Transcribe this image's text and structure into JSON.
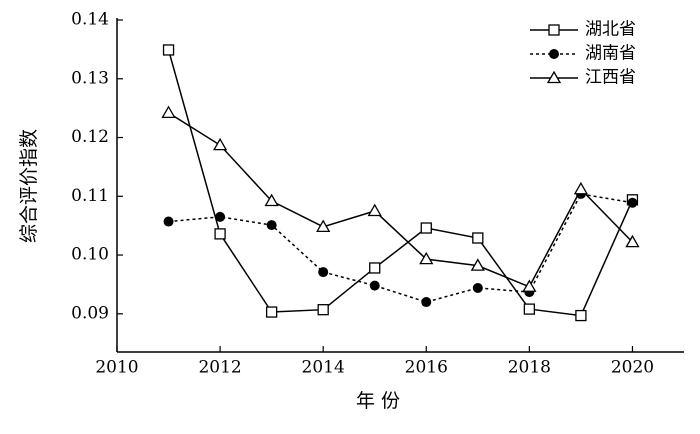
{
  "chart_data": {
    "type": "line",
    "x_label": "年 份",
    "y_label": "综合评价指数",
    "x": [
      2011,
      2012,
      2013,
      2014,
      2015,
      2016,
      2017,
      2018,
      2019,
      2020
    ],
    "series": [
      {
        "name": "湖北省",
        "color": "#000000",
        "marker": "square",
        "dashed": false,
        "values": [
          0.1349,
          0.1036,
          0.0903,
          0.0907,
          0.0978,
          0.1046,
          0.1029,
          0.0908,
          0.0897,
          0.1094
        ]
      },
      {
        "name": "湖南省",
        "color": "#000000",
        "marker": "circle",
        "dashed": true,
        "values": [
          0.1057,
          0.1065,
          0.1051,
          0.0971,
          0.0948,
          0.092,
          0.0944,
          0.0937,
          0.1104,
          0.1089
        ]
      },
      {
        "name": "江西省",
        "color": "#000000",
        "marker": "triangle",
        "dashed": false,
        "values": [
          0.1242,
          0.1187,
          0.1092,
          0.1048,
          0.1075,
          0.0993,
          0.0982,
          0.0946,
          0.1112,
          0.1022
        ]
      }
    ],
    "xlim": [
      2010,
      2021
    ],
    "xticks": [
      2010,
      2012,
      2014,
      2016,
      2018,
      2020
    ],
    "ylim": [
      0.0835,
      0.14
    ],
    "yticks": [
      0.09,
      {
        "value": 0.1,
        "label": "0.10"
      },
      0.11,
      0.12,
      0.13,
      0.14
    ],
    "legend": "upper-right"
  }
}
